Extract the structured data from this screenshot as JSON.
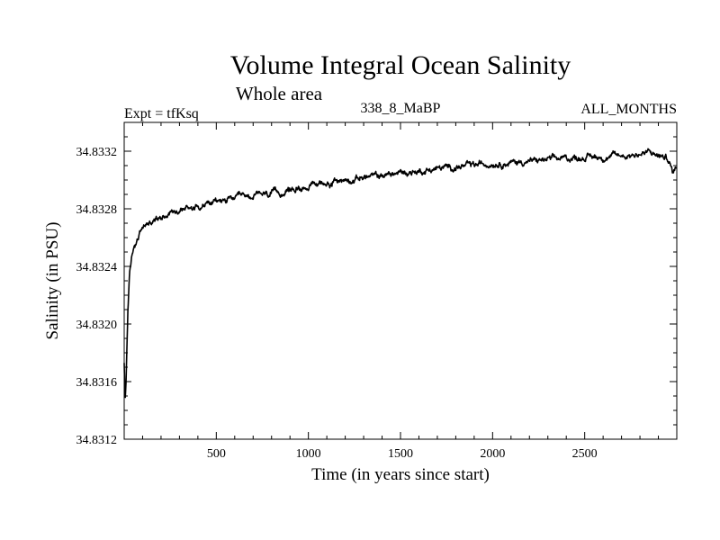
{
  "chart_data": {
    "type": "line",
    "title": "Volume Integral Ocean Salinity",
    "subtitle": "Whole area",
    "header_left": "Expt = tfKsq",
    "header_center": "338_8_MaBP",
    "header_right": "ALL_MONTHS",
    "xlabel": "Time (in years since start)",
    "ylabel": "Salinity (in PSU)",
    "xlim": [
      0,
      3000
    ],
    "ylim": [
      34.8312,
      34.8334
    ],
    "x_ticks": [
      500,
      1000,
      1500,
      2000,
      2500
    ],
    "x_tick_labels": [
      "500",
      "1000",
      "1500",
      "2000",
      "2500"
    ],
    "y_ticks": [
      34.8312,
      34.8316,
      34.832,
      34.8324,
      34.8328,
      34.8332
    ],
    "y_tick_labels": [
      "34.8312",
      "34.8316",
      "34.8320",
      "34.8324",
      "34.8328",
      "34.8332"
    ],
    "grid": false,
    "series": [
      {
        "name": "Volume integral ocean salinity",
        "color": "#000000",
        "x": [
          0,
          5,
          10,
          20,
          30,
          40,
          50,
          60,
          75,
          90,
          110,
          130,
          160,
          200,
          250,
          300,
          350,
          400,
          500,
          600,
          700,
          800,
          900,
          1000,
          1100,
          1200,
          1300,
          1400,
          1500,
          1600,
          1700,
          1800,
          1900,
          2000,
          2100,
          2200,
          2300,
          2400,
          2500,
          2600,
          2700,
          2800,
          2850,
          2900,
          2950,
          2980,
          3000
        ],
        "y": [
          34.83172,
          34.83145,
          34.8316,
          34.8321,
          34.83235,
          34.83245,
          34.83252,
          34.83256,
          34.8326,
          34.83265,
          34.83268,
          34.8327,
          34.83272,
          34.83275,
          34.83278,
          34.8328,
          34.83281,
          34.83282,
          34.83285,
          34.83287,
          34.83289,
          34.8329,
          34.83293,
          34.83296,
          34.83298,
          34.833,
          34.83302,
          34.83303,
          34.83305,
          34.83306,
          34.83308,
          34.83309,
          34.8331,
          34.83312,
          34.83312,
          34.83313,
          34.83314,
          34.83315,
          34.83316,
          34.83316,
          34.83317,
          34.83318,
          34.83319,
          34.83317,
          34.83315,
          34.83305,
          34.8331
        ]
      }
    ]
  }
}
